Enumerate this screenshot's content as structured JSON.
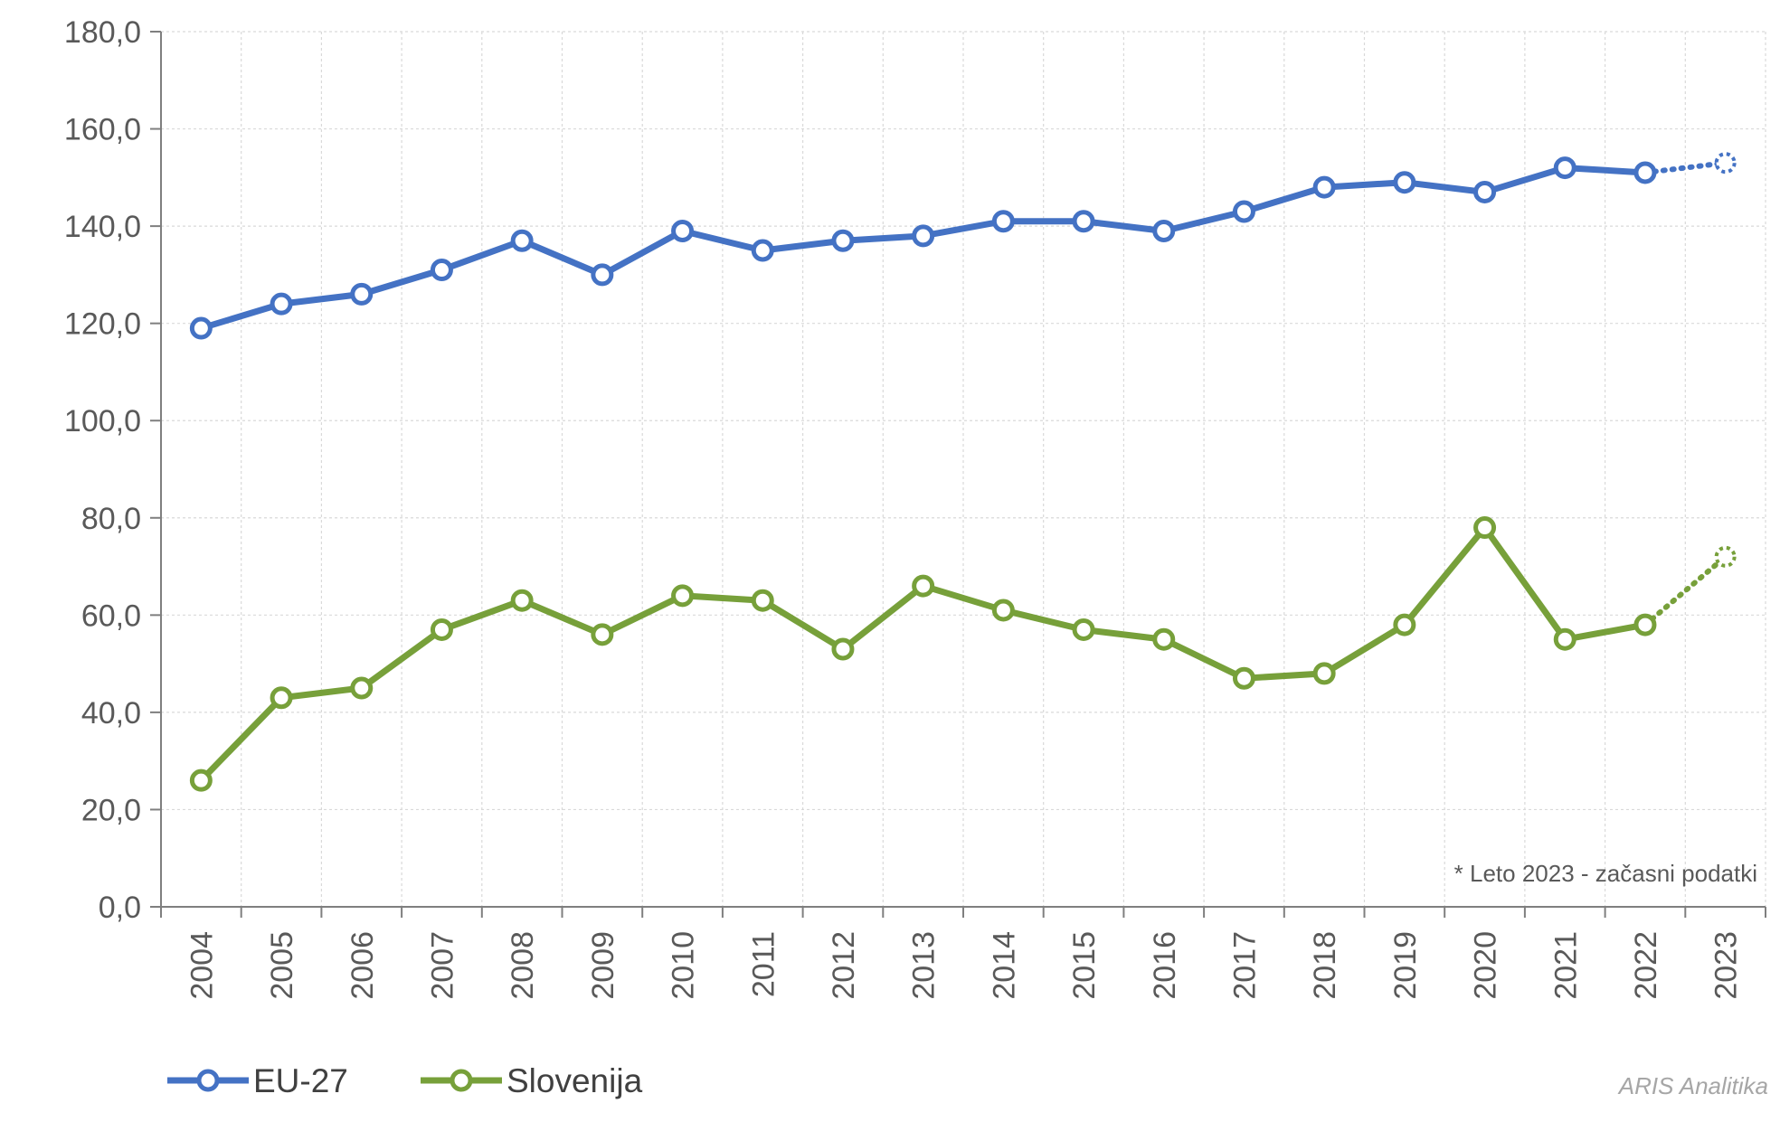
{
  "chart_data": {
    "type": "line",
    "title": "",
    "xlabel": "",
    "ylabel": "",
    "categories": [
      "2004",
      "2005",
      "2006",
      "2007",
      "2008",
      "2009",
      "2010",
      "2011",
      "2012",
      "2013",
      "2014",
      "2015",
      "2016",
      "2017",
      "2018",
      "2019",
      "2020",
      "2021",
      "2022",
      "2023"
    ],
    "ylim": [
      0,
      180
    ],
    "y_ticks": [
      "0,0",
      "20,0",
      "40,0",
      "60,0",
      "80,0",
      "100,0",
      "120,0",
      "140,0",
      "160,0",
      "180,0"
    ],
    "grid": "on (dotted, light gray)",
    "legend_position": "bottom-left",
    "provisional_category": "2023",
    "series": [
      {
        "name": "EU-27",
        "color": "#4472c4",
        "values": [
          119,
          124,
          126,
          131,
          137,
          130,
          139,
          135,
          137,
          138,
          141,
          141,
          139,
          143,
          148,
          149,
          147,
          152,
          151,
          153
        ]
      },
      {
        "name": "Slovenija",
        "color": "#77a03a",
        "values": [
          26,
          43,
          45,
          57,
          63,
          56,
          64,
          63,
          53,
          66,
          61,
          57,
          55,
          47,
          48,
          58,
          78,
          55,
          58,
          72
        ]
      }
    ],
    "annotation": "* Leto 2023 - začasni podatki",
    "credit": "ARIS Analitika"
  }
}
